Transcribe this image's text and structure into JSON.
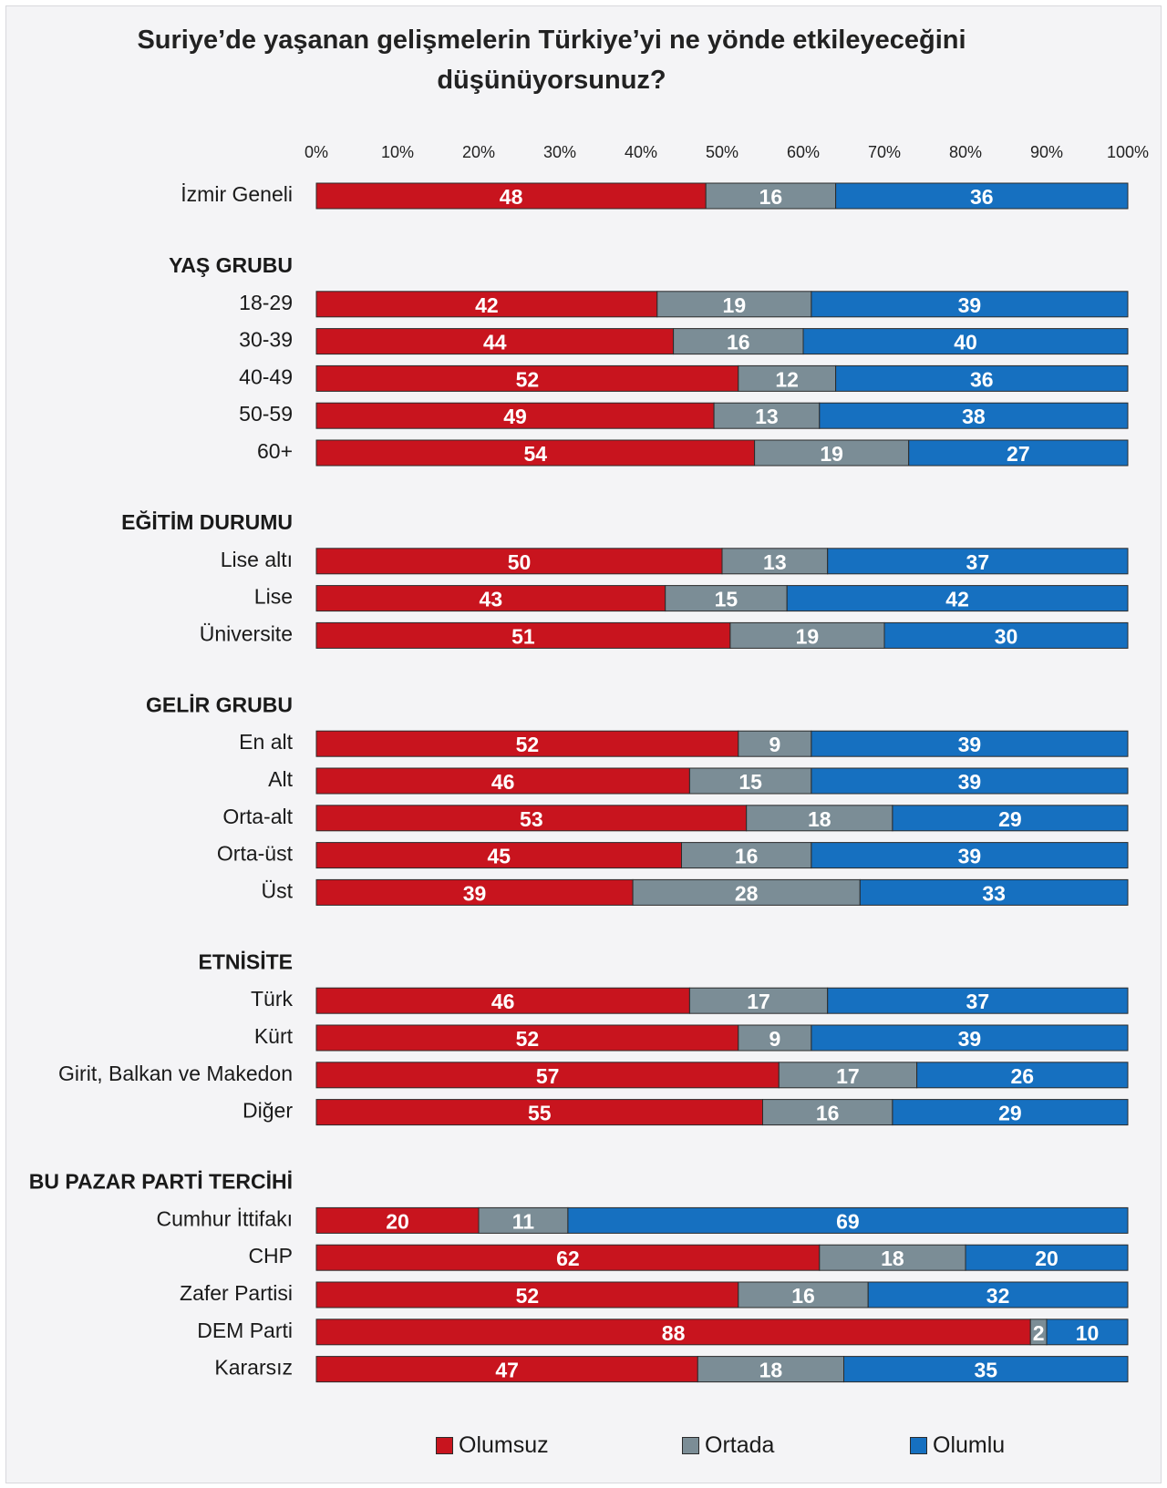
{
  "colors": {
    "olumsuz": "#c8141e",
    "ortada": "#7b8d96",
    "olumlu": "#1670c0"
  },
  "chart_data": {
    "type": "bar",
    "orientation": "horizontal",
    "stacked": true,
    "title": "Suriye’de yaşanan gelişmelerin Türkiye’yi ne yönde etkileyeceğini düşünüyorsunuz?",
    "xlim": [
      0,
      100
    ],
    "xticks": [
      "0%",
      "10%",
      "20%",
      "30%",
      "40%",
      "50%",
      "60%",
      "70%",
      "80%",
      "90%",
      "100%"
    ],
    "series": [
      {
        "name": "Olumsuz",
        "key": "olumsuz"
      },
      {
        "name": "Ortada",
        "key": "ortada"
      },
      {
        "name": "Olumlu",
        "key": "olumlu"
      }
    ],
    "groups": [
      {
        "name": "",
        "rows": [
          {
            "label": "İzmir Geneli",
            "values": [
              48,
              16,
              36
            ]
          }
        ]
      },
      {
        "name": "YAŞ GRUBU",
        "rows": [
          {
            "label": "18-29",
            "values": [
              42,
              19,
              39
            ]
          },
          {
            "label": "30-39",
            "values": [
              44,
              16,
              40
            ]
          },
          {
            "label": "40-49",
            "values": [
              52,
              12,
              36
            ]
          },
          {
            "label": "50-59",
            "values": [
              49,
              13,
              38
            ]
          },
          {
            "label": "60+",
            "values": [
              54,
              19,
              27
            ]
          }
        ]
      },
      {
        "name": "EĞİTİM DURUMU",
        "rows": [
          {
            "label": "Lise altı",
            "values": [
              50,
              13,
              37
            ]
          },
          {
            "label": "Lise",
            "values": [
              43,
              15,
              42
            ]
          },
          {
            "label": "Üniversite",
            "values": [
              51,
              19,
              30
            ]
          }
        ]
      },
      {
        "name": "GELİR GRUBU",
        "rows": [
          {
            "label": "En alt",
            "values": [
              52,
              9,
              39
            ]
          },
          {
            "label": "Alt",
            "values": [
              46,
              15,
              39
            ]
          },
          {
            "label": "Orta-alt",
            "values": [
              53,
              18,
              29
            ]
          },
          {
            "label": "Orta-üst",
            "values": [
              45,
              16,
              39
            ]
          },
          {
            "label": "Üst",
            "values": [
              39,
              28,
              33
            ]
          }
        ]
      },
      {
        "name": "ETNİSİTE",
        "rows": [
          {
            "label": "Türk",
            "values": [
              46,
              17,
              37
            ]
          },
          {
            "label": "Kürt",
            "values": [
              52,
              9,
              39
            ]
          },
          {
            "label": "Girit, Balkan ve Makedon",
            "values": [
              57,
              17,
              26
            ]
          },
          {
            "label": "Diğer",
            "values": [
              55,
              16,
              29
            ]
          }
        ]
      },
      {
        "name": "BU PAZAR PARTİ TERCİHİ",
        "rows": [
          {
            "label": "Cumhur İttifakı",
            "values": [
              20,
              11,
              69
            ]
          },
          {
            "label": "CHP",
            "values": [
              62,
              18,
              20
            ]
          },
          {
            "label": "Zafer Partisi",
            "values": [
              52,
              16,
              32
            ]
          },
          {
            "label": "DEM Parti",
            "values": [
              88,
              2,
              10
            ]
          },
          {
            "label": "Kararsız",
            "values": [
              47,
              18,
              35
            ]
          }
        ]
      }
    ],
    "legend": [
      "Olumsuz",
      "Ortada",
      "Olumlu"
    ],
    "legend_position": "bottom"
  }
}
